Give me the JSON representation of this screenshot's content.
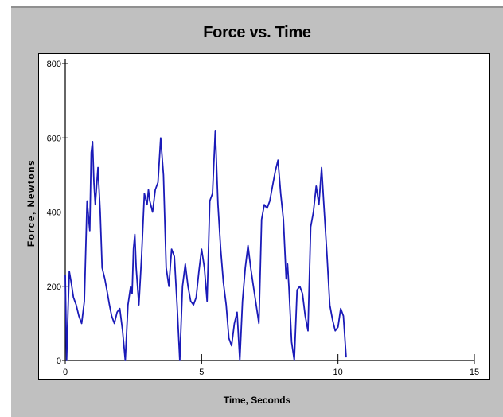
{
  "chart_data": {
    "type": "line",
    "title": "Force vs. Time",
    "xlabel": "Time, Seconds",
    "ylabel": "Force, Newtons",
    "xlim": [
      0,
      15
    ],
    "ylim": [
      0,
      800
    ],
    "x_ticks": [
      0,
      5,
      10,
      15
    ],
    "y_ticks": [
      0,
      200,
      400,
      600,
      800
    ],
    "grid": false,
    "line_color": "#1a1ab8",
    "series": [
      {
        "x": [
          0.0,
          0.05,
          0.1,
          0.15,
          0.22,
          0.3,
          0.4,
          0.5,
          0.6,
          0.7,
          0.8,
          0.9,
          0.95,
          1.0,
          1.05,
          1.1,
          1.2,
          1.28,
          1.35,
          1.45,
          1.55,
          1.62,
          1.7,
          1.8,
          1.9,
          2.0,
          2.1,
          2.2,
          2.3,
          2.4,
          2.45,
          2.5,
          2.55,
          2.6,
          2.7,
          2.8,
          2.9,
          3.0,
          3.05,
          3.1,
          3.2,
          3.3,
          3.4,
          3.5,
          3.6,
          3.7,
          3.8,
          3.9,
          4.0,
          4.1,
          4.2,
          4.3,
          4.4,
          4.5,
          4.6,
          4.7,
          4.8,
          4.9,
          5.0,
          5.1,
          5.2,
          5.3,
          5.4,
          5.5,
          5.6,
          5.7,
          5.8,
          5.9,
          6.0,
          6.1,
          6.2,
          6.3,
          6.4,
          6.5,
          6.6,
          6.7,
          6.8,
          6.9,
          7.0,
          7.1,
          7.2,
          7.3,
          7.4,
          7.5,
          7.6,
          7.7,
          7.8,
          7.9,
          8.0,
          8.1,
          8.15,
          8.2,
          8.3,
          8.4,
          8.5,
          8.6,
          8.7,
          8.8,
          8.9,
          9.0,
          9.1,
          9.2,
          9.3,
          9.4,
          9.5,
          9.6,
          9.7,
          9.8,
          9.9,
          10.0,
          10.1,
          10.2,
          10.3
        ],
        "y": [
          230,
          0,
          130,
          240,
          210,
          170,
          150,
          120,
          100,
          160,
          430,
          350,
          560,
          590,
          480,
          420,
          520,
          400,
          250,
          220,
          180,
          150,
          120,
          100,
          130,
          140,
          80,
          0,
          150,
          200,
          180,
          300,
          340,
          250,
          150,
          280,
          450,
          420,
          460,
          430,
          400,
          460,
          480,
          600,
          500,
          250,
          200,
          300,
          280,
          150,
          0,
          200,
          260,
          200,
          160,
          150,
          170,
          240,
          300,
          250,
          160,
          430,
          450,
          620,
          420,
          300,
          210,
          150,
          60,
          40,
          100,
          130,
          0,
          160,
          250,
          310,
          250,
          200,
          150,
          100,
          380,
          420,
          410,
          430,
          470,
          510,
          540,
          450,
          380,
          220,
          260,
          200,
          50,
          0,
          190,
          200,
          180,
          120,
          80,
          360,
          400,
          470,
          420,
          520,
          400,
          280,
          150,
          110,
          80,
          90,
          140,
          120,
          10
        ]
      }
    ]
  }
}
